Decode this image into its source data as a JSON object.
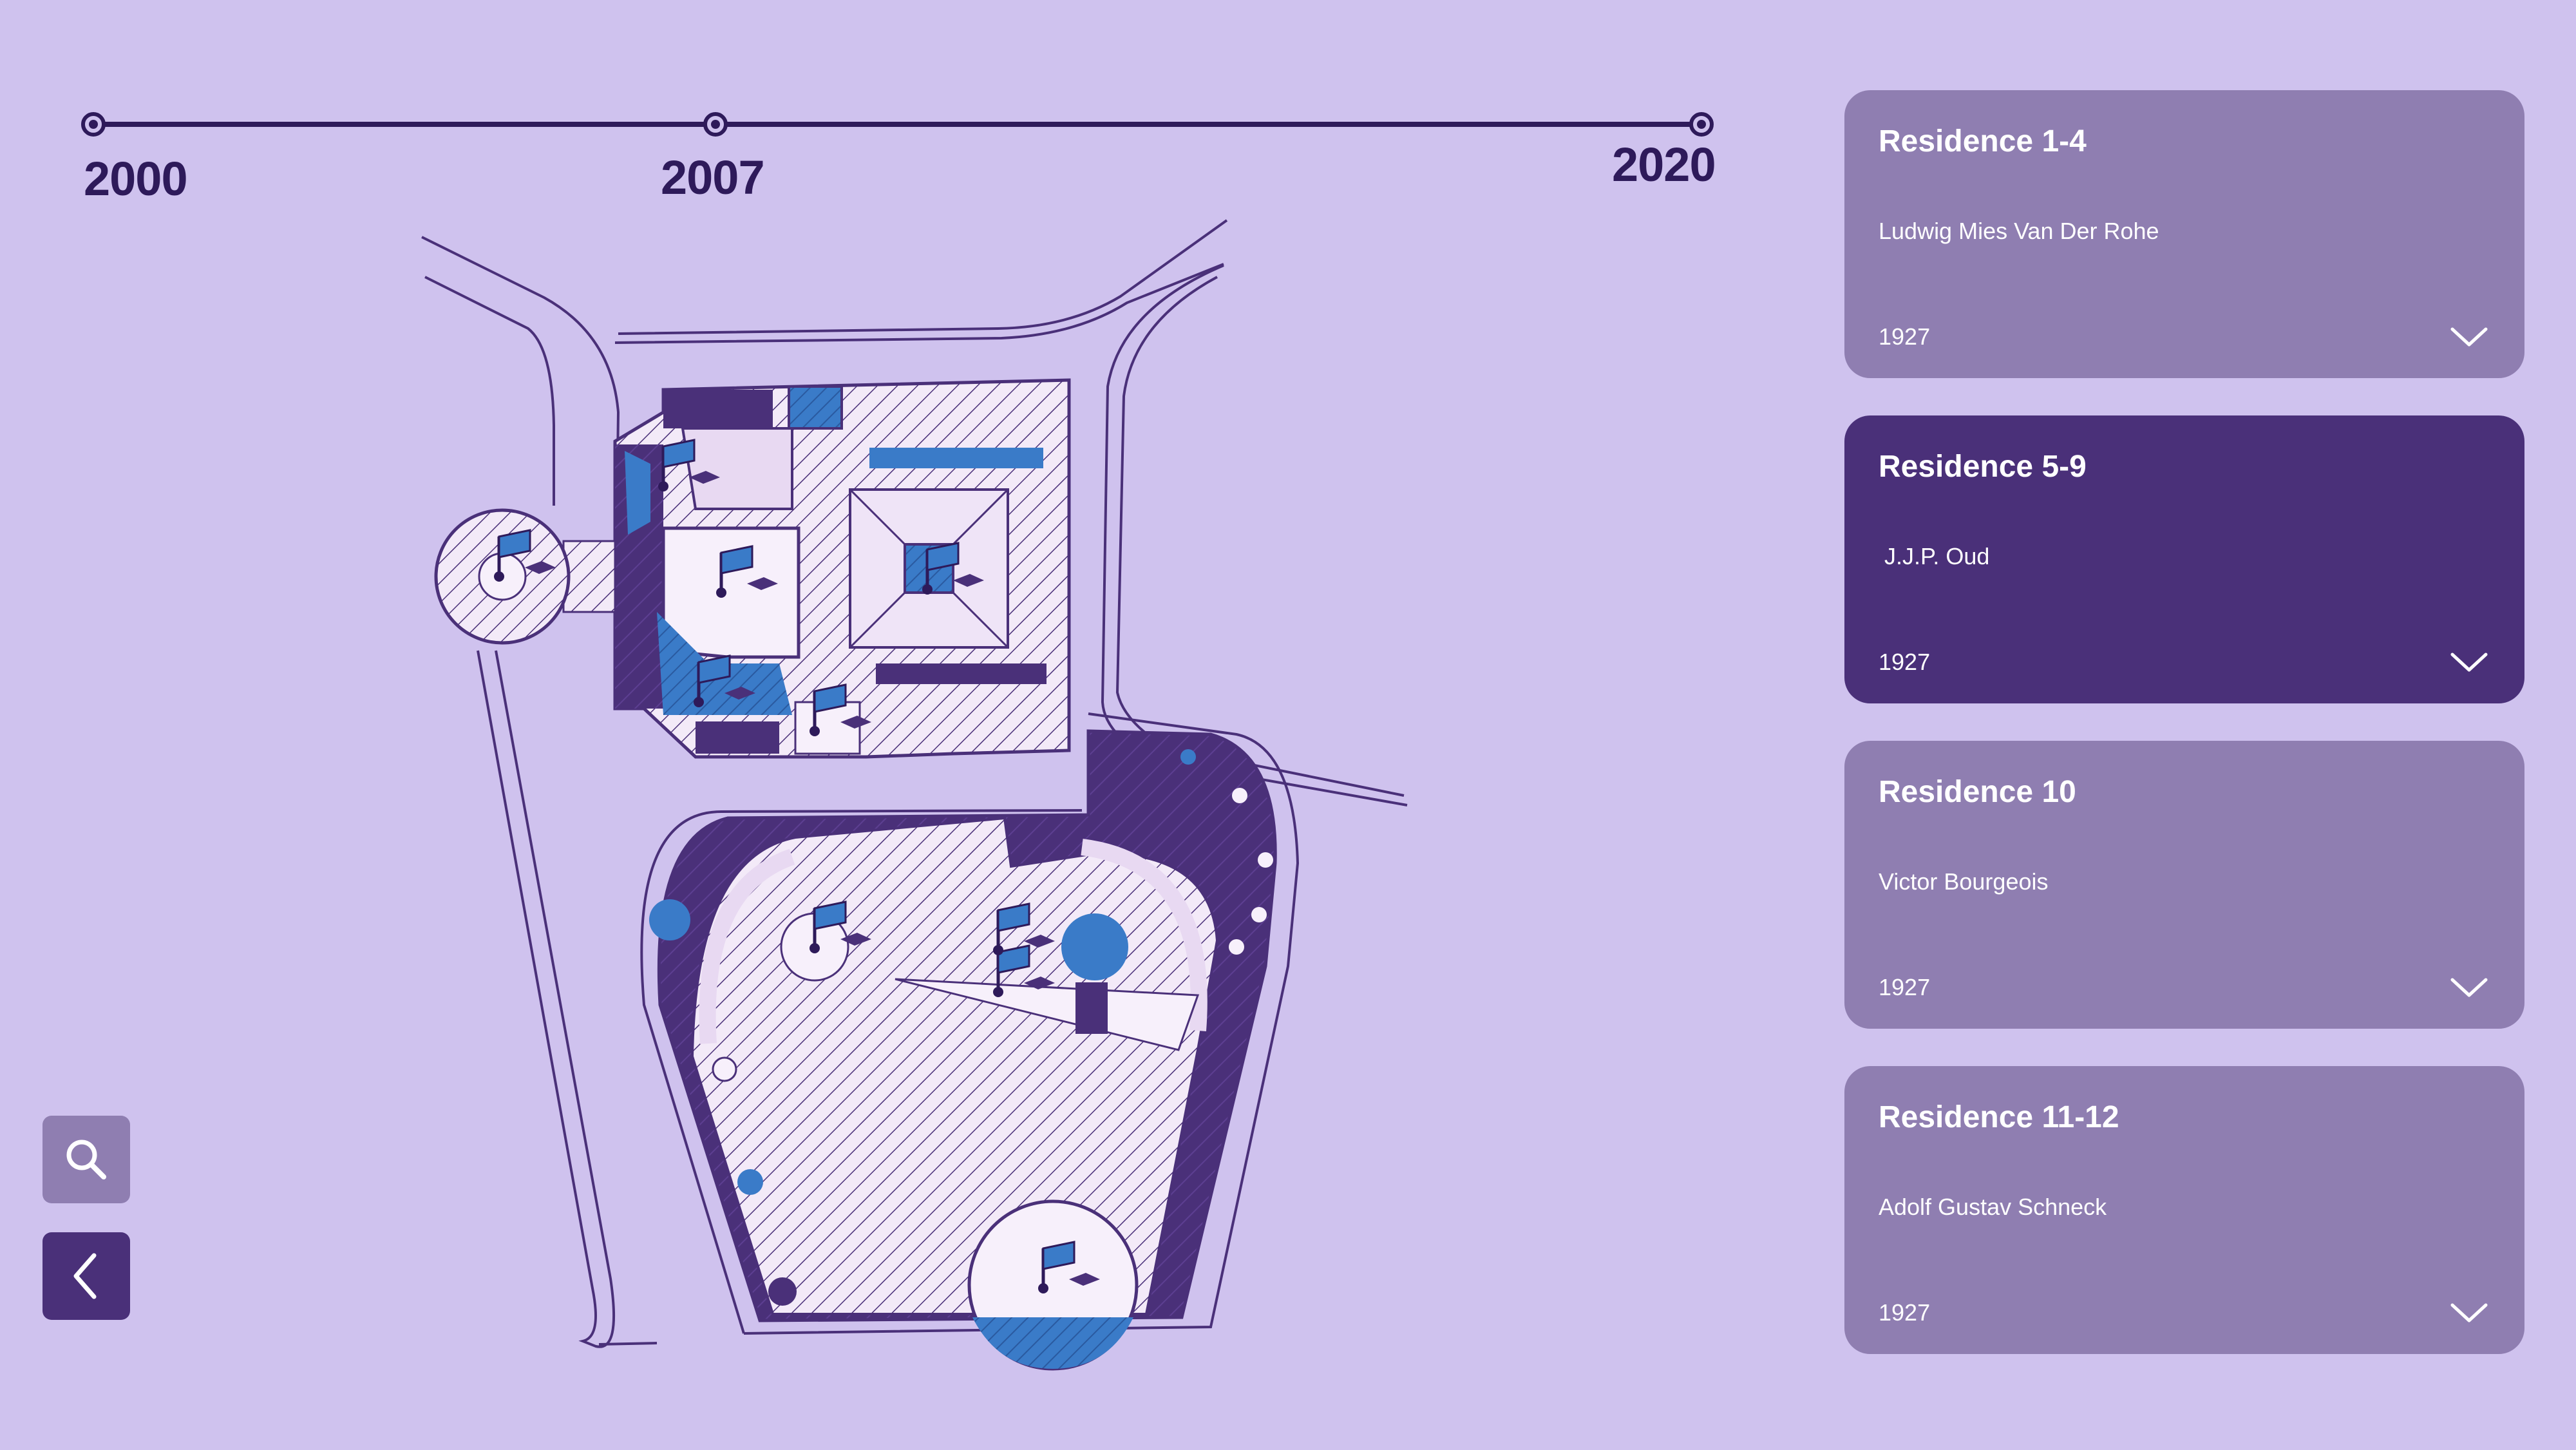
{
  "timeline": {
    "years": [
      "2000",
      "2007",
      "2020"
    ]
  },
  "controls": {
    "search_icon": "search-icon",
    "back_icon": "chevron-left-icon"
  },
  "colors": {
    "background": "#cfc2ee",
    "card": "#8f7eb1",
    "card_active": "#4a3079",
    "dark_purple": "#2e1a5a",
    "map_blue": "#3a7bc8"
  },
  "residences": [
    {
      "title": "Residence 1-4",
      "architect": "Ludwig Mies Van Der Rohe",
      "year": "1927",
      "selected": false
    },
    {
      "title": "Residence 5-9",
      "architect": "J.J.P. Oud",
      "year": "1927",
      "selected": true
    },
    {
      "title": "Residence 10",
      "architect": "Victor Bourgeois",
      "year": "1927",
      "selected": false
    },
    {
      "title": "Residence 11-12",
      "architect": "Adolf Gustav Schneck",
      "year": "1927",
      "selected": false
    }
  ]
}
